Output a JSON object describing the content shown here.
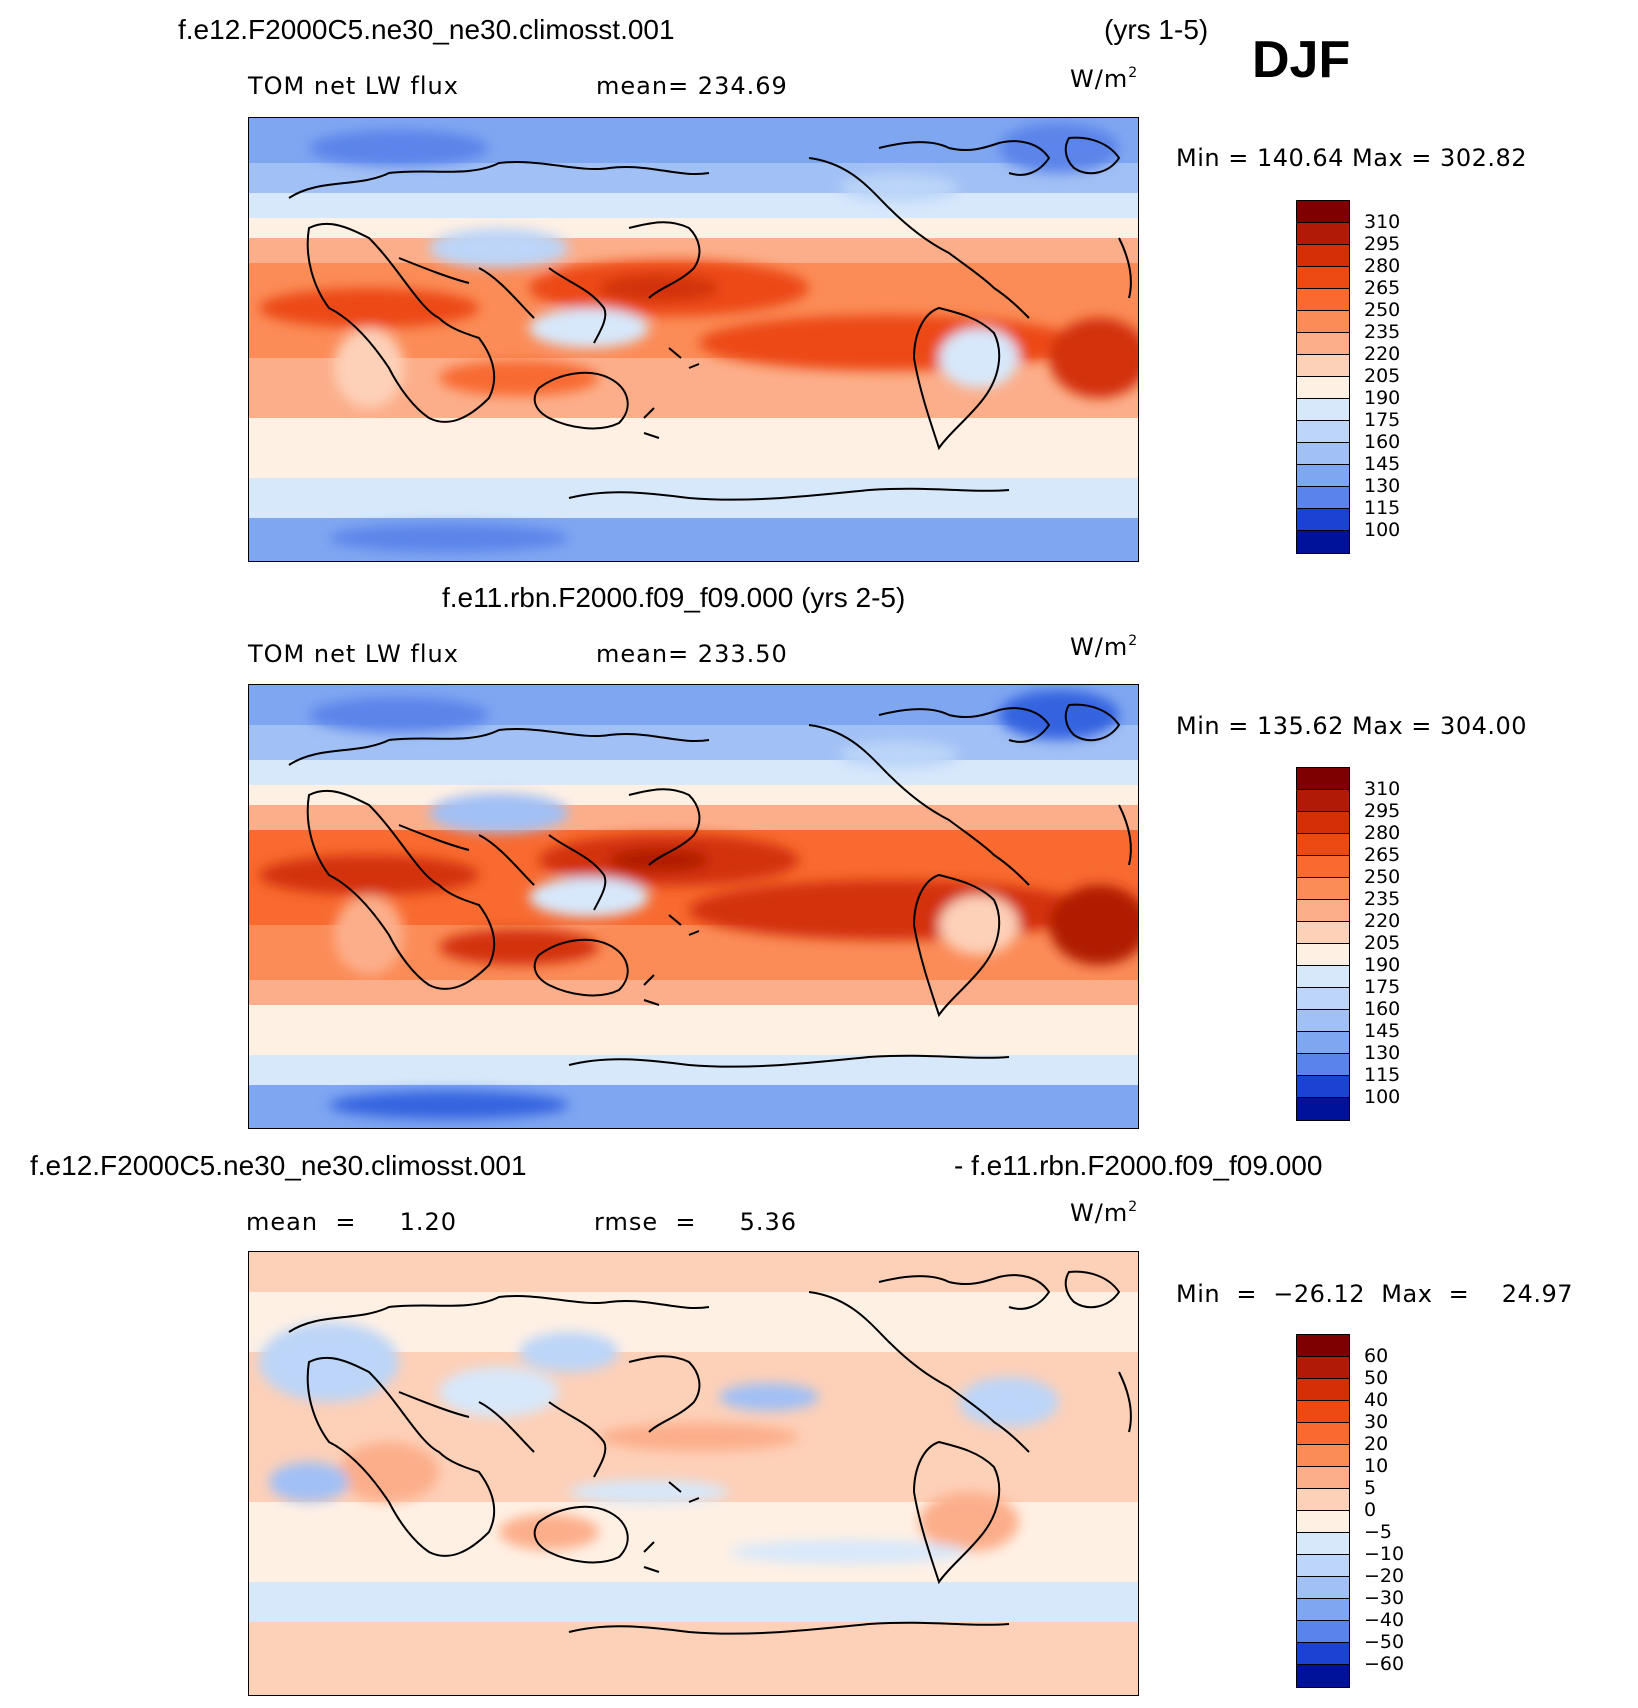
{
  "season": "DJF",
  "panels": [
    {
      "title": "f.e12.F2000C5.ne30_ne30.climosst.001",
      "years": "(yrs 1-5)",
      "variable": "TOM net LW flux",
      "stat": "mean=  234.69",
      "units": "W/m",
      "units_sup": "2",
      "minmax": "Min  =  140.64  Max  =  302.82",
      "colorbar": {
        "labels": [
          "310",
          "295",
          "280",
          "265",
          "250",
          "235",
          "220",
          "205",
          "190",
          "175",
          "160",
          "145",
          "130",
          "115",
          "100"
        ],
        "colors": [
          "#7f0000",
          "#b01a06",
          "#d33008",
          "#ec4a12",
          "#f86a30",
          "#fb8c58",
          "#fcae8a",
          "#fdd0b8",
          "#fff0e4",
          "#d7e8fb",
          "#bcd5f8",
          "#a1c0f5",
          "#7fa6f1",
          "#5b84ea",
          "#3563e0",
          "#1a43d3",
          "#0a2ab0",
          "#00129a"
        ],
        "legend_colors": [
          "#7f0000",
          "#b01a06",
          "#d33008",
          "#ec4a12",
          "#f86a30",
          "#fb8c58",
          "#fcae8a",
          "#fdd0b8",
          "#fff0e4",
          "#d7e8fb",
          "#bcd5f8",
          "#a1c0f5",
          "#7fa6f1",
          "#5b84ea",
          "#3563e0",
          "#1a43d3"
        ]
      }
    },
    {
      "title": "f.e11.rbn.F2000.f09_f09.000 (yrs 2-5)",
      "variable": "TOM net LW flux",
      "stat": "mean=  233.50",
      "units": "W/m",
      "units_sup": "2",
      "minmax": "Min  =  135.62  Max  =  304.00",
      "colorbar": {
        "labels": [
          "310",
          "295",
          "280",
          "265",
          "250",
          "235",
          "220",
          "205",
          "190",
          "175",
          "160",
          "145",
          "130",
          "115",
          "100"
        ]
      }
    },
    {
      "title_left": "f.e12.F2000C5.ne30_ne30.climosst.001",
      "title_right": "- f.e11.rbn.F2000.f09_f09.000",
      "stat_mean": "mean  =     1.20",
      "stat_rmse": "rmse  =     5.36",
      "units": "W/m",
      "units_sup": "2",
      "minmax": "Min  =  −26.12  Max  =    24.97",
      "colorbar": {
        "labels": [
          "60",
          "50",
          "40",
          "30",
          "20",
          "10",
          "5",
          "0",
          "−5",
          "−10",
          "−20",
          "−30",
          "−40",
          "−50",
          "−60"
        ],
        "legend_colors": [
          "#7f0000",
          "#b01a06",
          "#d33008",
          "#ec4a12",
          "#f86a30",
          "#fb8c58",
          "#fcae8a",
          "#fdd0b8",
          "#fff0e4",
          "#d7e8fb",
          "#bcd5f8",
          "#a1c0f5",
          "#7fa6f1",
          "#5b84ea",
          "#3563e0",
          "#1a43d3"
        ]
      }
    }
  ],
  "chart_data": [
    {
      "type": "heatmap",
      "title": "f.e12.F2000C5.ne30_ne30.climosst.001 (yrs 1-5)",
      "variable": "TOM net LW flux",
      "units": "W/m2",
      "mean": 234.69,
      "min": 140.64,
      "max": 302.82,
      "levels": [
        100,
        115,
        130,
        145,
        160,
        175,
        190,
        205,
        220,
        235,
        250,
        265,
        280,
        295,
        310
      ]
    },
    {
      "type": "heatmap",
      "title": "f.e11.rbn.F2000.f09_f09.000 (yrs 2-5)",
      "variable": "TOM net LW flux",
      "units": "W/m2",
      "mean": 233.5,
      "min": 135.62,
      "max": 304.0,
      "levels": [
        100,
        115,
        130,
        145,
        160,
        175,
        190,
        205,
        220,
        235,
        250,
        265,
        280,
        295,
        310
      ]
    },
    {
      "type": "heatmap",
      "title": "f.e12.F2000C5.ne30_ne30.climosst.001 - f.e11.rbn.F2000.f09_f09.000",
      "units": "W/m2",
      "mean": 1.2,
      "rmse": 5.36,
      "min": -26.12,
      "max": 24.97,
      "levels": [
        -60,
        -50,
        -40,
        -30,
        -20,
        -10,
        -5,
        0,
        5,
        10,
        20,
        30,
        40,
        50,
        60
      ]
    }
  ]
}
